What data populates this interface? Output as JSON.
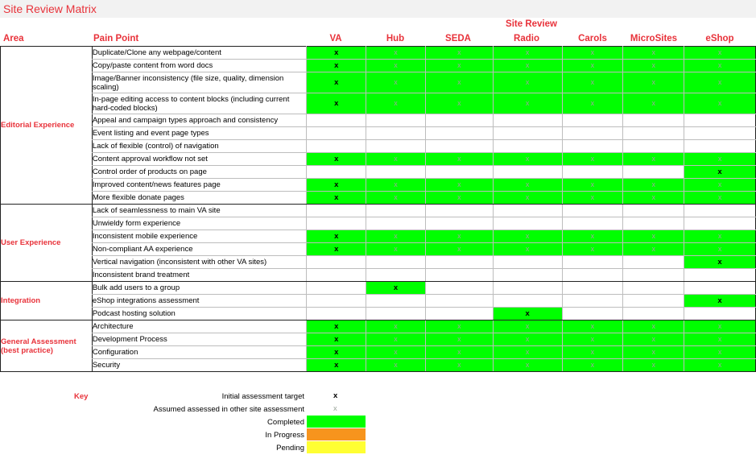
{
  "title": "Site Review Matrix",
  "group_header": "Site Review",
  "headers": {
    "area": "Area",
    "pain_point": "Pain Point",
    "sites": [
      "VA",
      "Hub",
      "SEDA",
      "Radio",
      "Carols",
      "MicroSites",
      "eShop"
    ]
  },
  "groups": [
    {
      "area": "Editorial Experience",
      "rows": [
        {
          "pain": "Duplicate/Clone any webpage/content",
          "cells": [
            "gx",
            "ga",
            "ga",
            "ga",
            "ga",
            "ga",
            "ga"
          ]
        },
        {
          "pain": "Copy/paste content from word docs",
          "cells": [
            "gx",
            "ga",
            "ga",
            "ga",
            "ga",
            "ga",
            "ga"
          ]
        },
        {
          "pain": "Image/Banner inconsistency (file size, quality, dimension scaling)",
          "cells": [
            "gx",
            "ga",
            "ga",
            "ga",
            "ga",
            "ga",
            "ga"
          ],
          "tall": true
        },
        {
          "pain": "In-page editing access to content blocks (including current hard-coded blocks)",
          "cells": [
            "gx",
            "ga",
            "ga",
            "ga",
            "ga",
            "ga",
            "ga"
          ],
          "tall": true
        },
        {
          "pain": "Appeal and campaign types approach and consistency",
          "cells": [
            "",
            "",
            "",
            "",
            "",
            "",
            ""
          ]
        },
        {
          "pain": "Event listing and event page types",
          "cells": [
            "",
            "",
            "",
            "",
            "",
            "",
            ""
          ]
        },
        {
          "pain": "Lack of flexible (control) of navigation",
          "cells": [
            "",
            "",
            "",
            "",
            "",
            "",
            ""
          ]
        },
        {
          "pain": "Content approval workflow not set",
          "cells": [
            "gx",
            "ga",
            "ga",
            "ga",
            "ga",
            "ga",
            "ga"
          ]
        },
        {
          "pain": "Control order of products on page",
          "cells": [
            "",
            "",
            "",
            "",
            "",
            "",
            "gx"
          ]
        },
        {
          "pain": "Improved content/news features page",
          "cells": [
            "gx",
            "ga",
            "ga",
            "ga",
            "ga",
            "ga",
            "ga"
          ]
        },
        {
          "pain": "More flexible donate pages",
          "cells": [
            "gx",
            "ga",
            "ga",
            "ga",
            "ga",
            "ga",
            "ga"
          ]
        }
      ]
    },
    {
      "area": "User Experience",
      "rows": [
        {
          "pain": "Lack of seamlessness to main VA site",
          "cells": [
            "",
            "",
            "",
            "",
            "",
            "",
            ""
          ]
        },
        {
          "pain": "Unwieldy form experience",
          "cells": [
            "",
            "",
            "",
            "",
            "",
            "",
            ""
          ]
        },
        {
          "pain": "Inconsistent mobile experience",
          "cells": [
            "gx",
            "ga",
            "ga",
            "ga",
            "ga",
            "ga",
            "ga"
          ]
        },
        {
          "pain": "Non-compliant AA experience",
          "cells": [
            "gx",
            "ga",
            "ga",
            "ga",
            "ga",
            "ga",
            "ga"
          ]
        },
        {
          "pain": "Vertical navigation (inconsistent with other VA sites)",
          "cells": [
            "",
            "",
            "",
            "",
            "",
            "",
            "gx"
          ]
        },
        {
          "pain": "Inconsistent brand treatment",
          "cells": [
            "",
            "",
            "",
            "",
            "",
            "",
            ""
          ]
        }
      ]
    },
    {
      "area": "Integration",
      "rows": [
        {
          "pain": "Bulk add users to a group",
          "cells": [
            "",
            "gx",
            "",
            "",
            "",
            "",
            ""
          ]
        },
        {
          "pain": "eShop integrations assessment",
          "cells": [
            "",
            "",
            "",
            "",
            "",
            "",
            "gx"
          ]
        },
        {
          "pain": "Podcast hosting solution",
          "cells": [
            "",
            "",
            "",
            "gx",
            "",
            "",
            ""
          ]
        }
      ]
    },
    {
      "area": "General Assessment (best practice)",
      "rows": [
        {
          "pain": "Architecture",
          "cells": [
            "gx",
            "ga",
            "ga",
            "ga",
            "ga",
            "ga",
            "ga"
          ]
        },
        {
          "pain": "Development Process",
          "cells": [
            "gx",
            "ga",
            "ga",
            "ga",
            "ga",
            "ga",
            "ga"
          ]
        },
        {
          "pain": "Configuration",
          "cells": [
            "gx",
            "ga",
            "ga",
            "ga",
            "ga",
            "ga",
            "ga"
          ]
        },
        {
          "pain": "Security",
          "cells": [
            "gx",
            "ga",
            "ga",
            "ga",
            "ga",
            "ga",
            "ga"
          ]
        }
      ]
    }
  ],
  "marks": {
    "initial": "x",
    "assumed": "x"
  },
  "key": {
    "title": "Key",
    "initial_label": "Initial assessment target",
    "assumed_label": "Assumed assessed in other site assessment",
    "completed_label": "Completed",
    "in_progress_label": "In Progress",
    "pending_label": "Pending",
    "colors": {
      "completed": "#00ff00",
      "in_progress": "#f7941d",
      "pending": "#ffff33"
    }
  }
}
